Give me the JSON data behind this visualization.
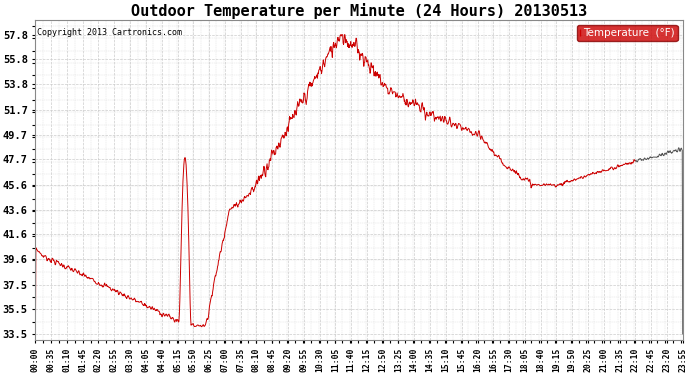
{
  "title": "Outdoor Temperature per Minute (24 Hours) 20130513",
  "copyright_text": "Copyright 2013 Cartronics.com",
  "legend_label": "Temperature  (°F)",
  "yticks": [
    33.5,
    35.5,
    37.5,
    39.6,
    41.6,
    43.6,
    45.6,
    47.7,
    49.7,
    51.7,
    53.8,
    55.8,
    57.8
  ],
  "ylim": [
    33.0,
    59.0
  ],
  "xtick_labels": [
    "00:00",
    "00:35",
    "01:10",
    "01:45",
    "02:20",
    "02:55",
    "03:30",
    "04:05",
    "04:40",
    "05:15",
    "05:50",
    "06:25",
    "07:00",
    "07:35",
    "08:10",
    "08:45",
    "09:20",
    "09:55",
    "10:30",
    "11:05",
    "11:40",
    "12:15",
    "12:50",
    "13:25",
    "14:00",
    "14:35",
    "15:10",
    "15:45",
    "16:20",
    "16:55",
    "17:30",
    "18:05",
    "18:40",
    "19:15",
    "19:50",
    "20:25",
    "21:00",
    "21:35",
    "22:10",
    "22:45",
    "23:20",
    "23:55"
  ],
  "line_color": "#cc0000",
  "last_segment_color": "#555555",
  "background_color": "#ffffff",
  "grid_color": "#cccccc",
  "title_fontsize": 11,
  "legend_bg": "#cc0000",
  "legend_text_color": "#ffffff"
}
